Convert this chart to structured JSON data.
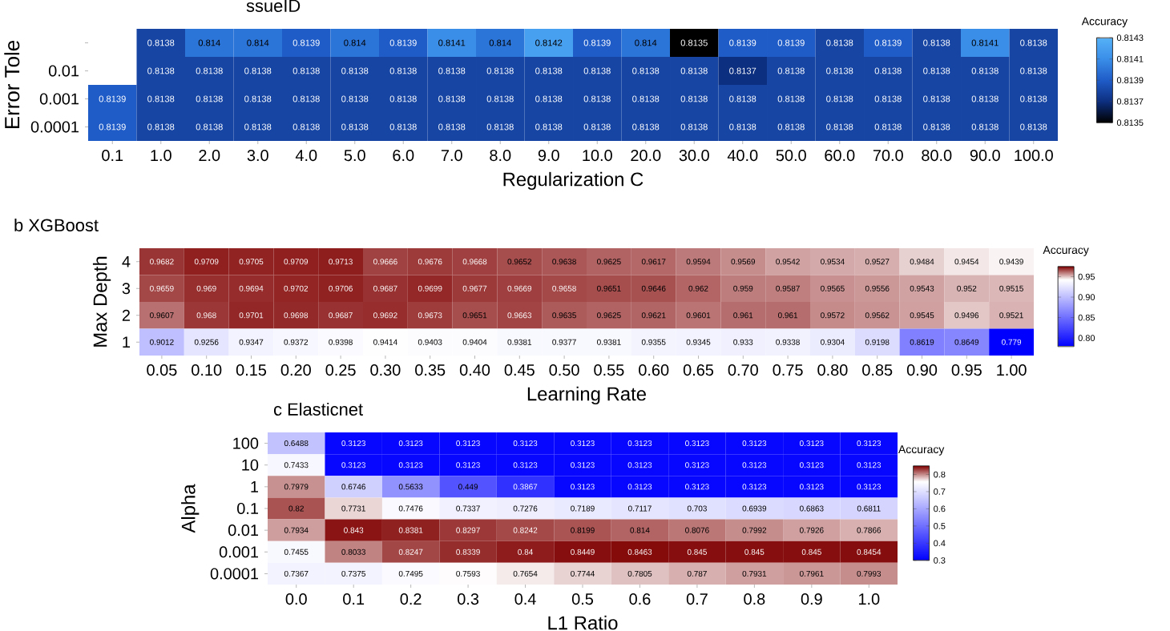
{
  "chart_data": [
    {
      "type": "heatmap",
      "title": "ssueID",
      "xlabel": "Regularization C",
      "ylabel": "Error Tole",
      "clabel": "Accuracy",
      "categories": [
        "0.1",
        "1.0",
        "2.0",
        "3.0",
        "4.0",
        "5.0",
        "6.0",
        "7.0",
        "8.0",
        "9.0",
        "10.0",
        "20.0",
        "30.0",
        "40.0",
        "50.0",
        "60.0",
        "70.0",
        "80.0",
        "90.0",
        "100.0"
      ],
      "y_categories": [
        null,
        "0.01",
        "0.001",
        "0.0001"
      ],
      "cells": [
        [
          null,
          0.8138,
          0.814,
          0.814,
          0.8139,
          0.814,
          0.8139,
          0.8141,
          0.814,
          0.8142,
          0.8139,
          0.814,
          0.8135,
          0.8139,
          0.8139,
          0.8138,
          0.8139,
          0.8138,
          0.8141,
          0.8138
        ],
        [
          null,
          0.8138,
          0.8138,
          0.8138,
          0.8138,
          0.8138,
          0.8138,
          0.8138,
          0.8138,
          0.8138,
          0.8138,
          0.8138,
          0.8138,
          0.8137,
          0.8138,
          0.8138,
          0.8138,
          0.8138,
          0.8138,
          0.8138
        ],
        [
          0.8139,
          0.8138,
          0.8138,
          0.8138,
          0.8138,
          0.8138,
          0.8138,
          0.8138,
          0.8138,
          0.8138,
          0.8138,
          0.8138,
          0.8138,
          0.8138,
          0.8138,
          0.8138,
          0.8138,
          0.8138,
          0.8138,
          0.8138
        ],
        [
          0.8139,
          0.8138,
          0.8138,
          0.8138,
          0.8138,
          0.8138,
          0.8138,
          0.8138,
          0.8138,
          0.8138,
          0.8138,
          0.8138,
          0.8138,
          0.8138,
          0.8138,
          0.8138,
          0.8138,
          0.8138,
          0.8138,
          0.8138
        ]
      ],
      "clim": [
        0.8135,
        0.8143
      ],
      "cticks": [
        0.8135,
        0.8137,
        0.8139,
        0.8141,
        0.8143
      ],
      "colors": [
        "#000000",
        "#0d2f80",
        "#1f5cc8",
        "#3a8ee8",
        "#56b1f7"
      ],
      "data_labels": true
    },
    {
      "type": "heatmap",
      "title": "b XGBoost",
      "xlabel": "Learning Rate",
      "ylabel": "Max Depth",
      "clabel": "Accuracy",
      "categories": [
        "0.05",
        "0.10",
        "0.15",
        "0.20",
        "0.25",
        "0.30",
        "0.35",
        "0.40",
        "0.45",
        "0.50",
        "0.55",
        "0.60",
        "0.65",
        "0.70",
        "0.75",
        "0.80",
        "0.85",
        "0.90",
        "0.95",
        "1.00"
      ],
      "y_categories": [
        "4",
        "3",
        "2",
        "1"
      ],
      "cells": [
        [
          0.9682,
          0.9709,
          0.9705,
          0.9709,
          0.9713,
          0.9666,
          0.9676,
          0.9668,
          0.9652,
          0.9638,
          0.9625,
          0.9617,
          0.9594,
          0.9569,
          0.9542,
          0.9534,
          0.9527,
          0.9484,
          0.9454,
          0.9439
        ],
        [
          0.9659,
          0.969,
          0.9694,
          0.9702,
          0.9706,
          0.9687,
          0.9699,
          0.9677,
          0.9669,
          0.9658,
          0.9651,
          0.9646,
          0.962,
          0.959,
          0.9587,
          0.9565,
          0.9556,
          0.9543,
          0.952,
          0.9515
        ],
        [
          0.9607,
          0.968,
          0.9701,
          0.9698,
          0.9687,
          0.9692,
          0.9673,
          0.9651,
          0.9663,
          0.9635,
          0.9625,
          0.9621,
          0.9601,
          0.961,
          0.961,
          0.9572,
          0.9562,
          0.9545,
          0.9496,
          0.9521
        ],
        [
          0.9012,
          0.9256,
          0.9347,
          0.9372,
          0.9398,
          0.9414,
          0.9403,
          0.9404,
          0.9381,
          0.9377,
          0.9381,
          0.9355,
          0.9345,
          0.933,
          0.9338,
          0.9304,
          0.9198,
          0.8619,
          0.8649,
          0.779
        ]
      ],
      "clim": [
        0.779,
        0.975
      ],
      "cticks": [
        {
          "value": 0.8,
          "label": "0.80"
        },
        {
          "value": 0.85,
          "label": "0.85"
        },
        {
          "value": 0.9,
          "label": "0.90"
        },
        {
          "value": 0.95,
          "label": "0.95"
        }
      ],
      "colors": [
        "#0000ff",
        "#3333ff",
        "#6666ff",
        "#9999ff",
        "#ccccff",
        "#ffffff",
        "#800000"
      ],
      "data_labels": true
    },
    {
      "type": "heatmap",
      "title": "c Elasticnet",
      "xlabel": "L1 Ratio",
      "ylabel": "Alpha",
      "clabel": "Accuracy",
      "categories": [
        "0.0",
        "0.1",
        "0.2",
        "0.3",
        "0.4",
        "0.5",
        "0.6",
        "0.7",
        "0.8",
        "0.9",
        "1.0"
      ],
      "y_categories": [
        "100",
        "10",
        "1",
        "0.1",
        "0.01",
        "0.001",
        "0.0001"
      ],
      "cells": [
        [
          0.6488,
          0.3123,
          0.3123,
          0.3123,
          0.3123,
          0.3123,
          0.3123,
          0.3123,
          0.3123,
          0.3123,
          0.3123
        ],
        [
          0.7433,
          0.3123,
          0.3123,
          0.3123,
          0.3123,
          0.3123,
          0.3123,
          0.3123,
          0.3123,
          0.3123,
          0.3123
        ],
        [
          0.7979,
          0.6746,
          0.5633,
          0.449,
          0.3867,
          0.3123,
          0.3123,
          0.3123,
          0.3123,
          0.3123,
          0.3123
        ],
        [
          0.82,
          0.7731,
          0.7476,
          0.7337,
          0.7276,
          0.7189,
          0.7117,
          0.703,
          0.6939,
          0.6863,
          0.6811
        ],
        [
          0.7934,
          0.843,
          0.8381,
          0.8297,
          0.8242,
          0.8199,
          0.814,
          0.8076,
          0.7992,
          0.7926,
          0.7866
        ],
        [
          0.7455,
          0.8033,
          0.8247,
          0.8339,
          0.84,
          0.8449,
          0.8463,
          0.845,
          0.845,
          0.845,
          0.8454
        ],
        [
          0.7367,
          0.7375,
          0.7495,
          0.7593,
          0.7654,
          0.7744,
          0.7805,
          0.787,
          0.7931,
          0.7961,
          0.7993
        ]
      ],
      "clim": [
        0.3,
        0.85
      ],
      "cticks": [
        0.3,
        0.4,
        0.5,
        0.6,
        0.7,
        0.8
      ],
      "colors": [
        "#0000ff",
        "#3333ff",
        "#6666ff",
        "#9999ff",
        "#ccccff",
        "#ffffff",
        "#800000"
      ],
      "data_labels": true
    }
  ]
}
